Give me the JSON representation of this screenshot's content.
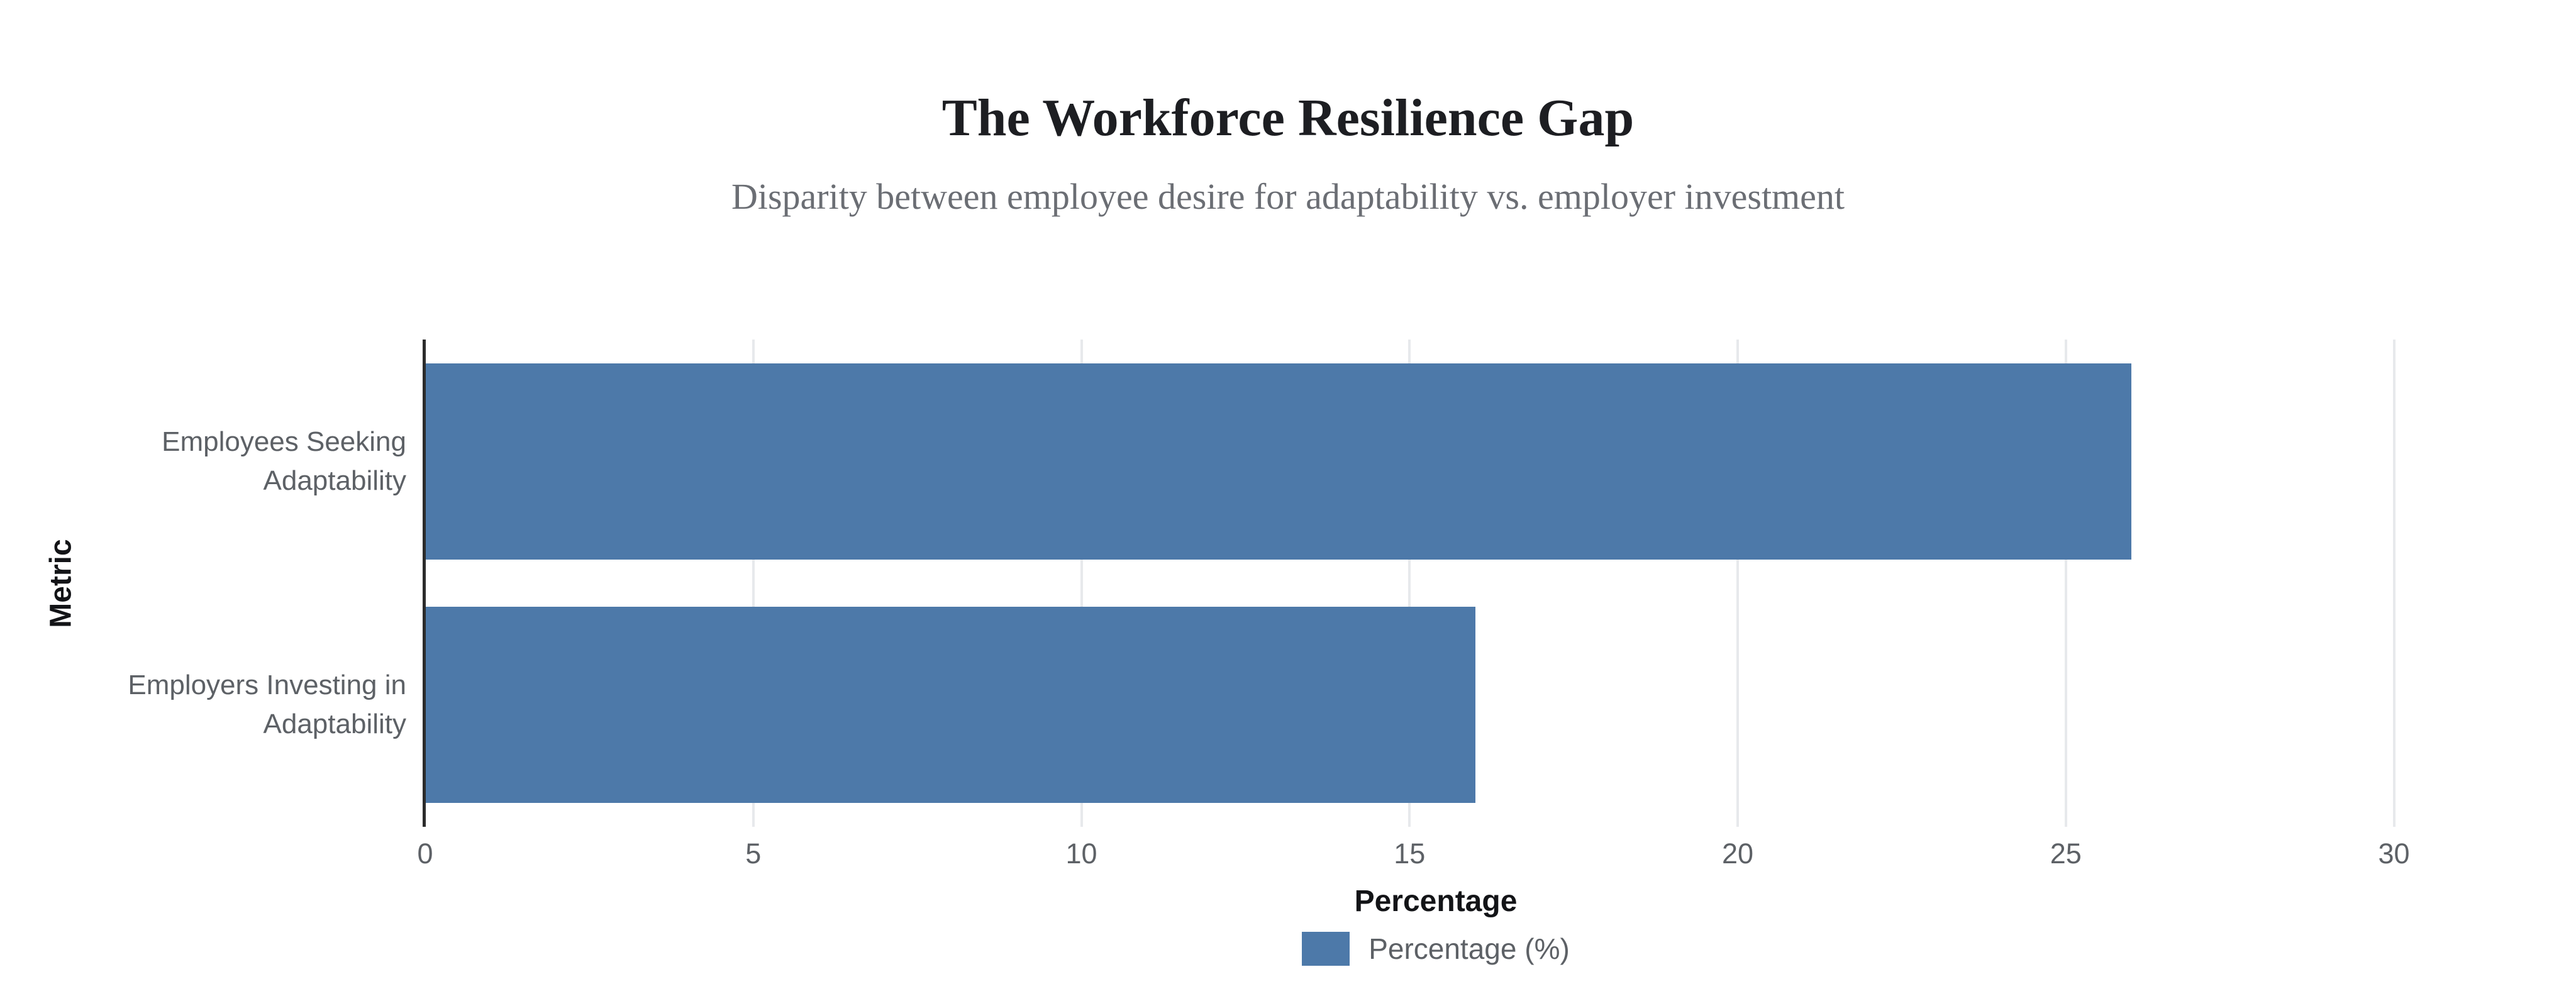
{
  "chart_data": {
    "type": "bar",
    "orientation": "horizontal",
    "title": "The Workforce Resilience Gap",
    "subtitle": "Disparity between employee desire for adaptability vs. employer investment",
    "xlabel": "Percentage",
    "ylabel": "Metric",
    "categories": [
      "Employees Seeking Adaptability",
      "Employers Investing in Adaptability"
    ],
    "category_lines": [
      [
        "Employees Seeking",
        "Adaptability"
      ],
      [
        "Employers Investing in",
        "Adaptability"
      ]
    ],
    "series": [
      {
        "name": "Percentage (%)",
        "values": [
          26,
          16
        ]
      }
    ],
    "xlim": [
      0,
      30.8
    ],
    "xticks": [
      0,
      5,
      10,
      15,
      20,
      25,
      30
    ],
    "grid": true,
    "legend_position": "bottom-center",
    "colors": {
      "bar": "#4d79a9",
      "grid": "#e7e9ec",
      "axis_line": "#2b2b2b",
      "title": "#1d1e22",
      "subtitle": "#6b6e74",
      "label": "#5d6166",
      "axis_title": "#131417",
      "background": "#ffffff"
    }
  }
}
